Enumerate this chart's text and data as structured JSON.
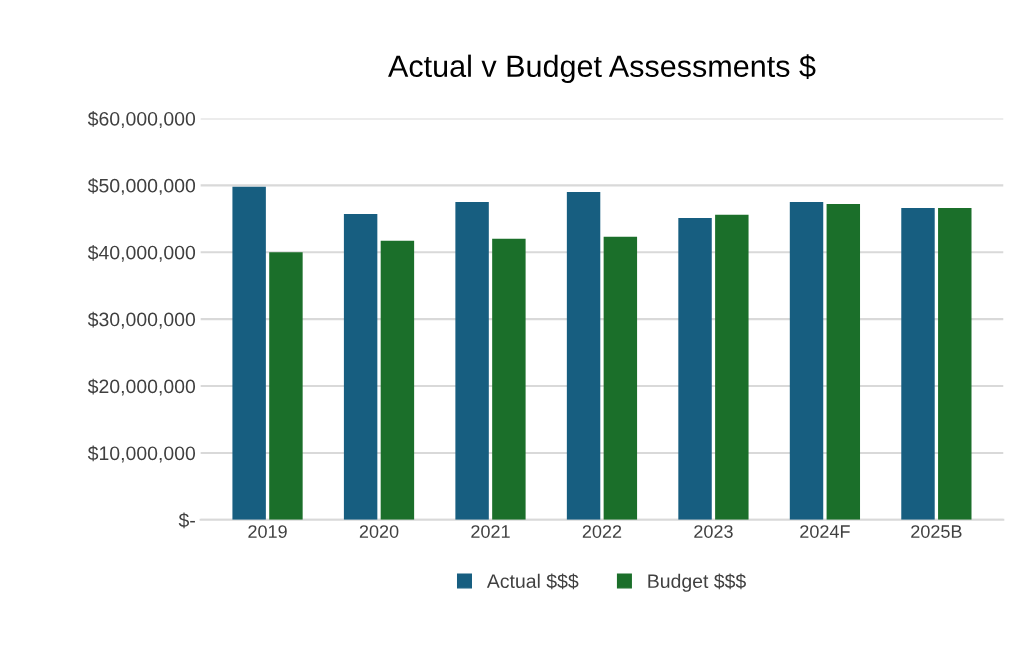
{
  "chart_data": {
    "type": "bar",
    "title": "Actual v Budget Assessments $",
    "categories": [
      "2019",
      "2020",
      "2021",
      "2022",
      "2023",
      "2024F",
      "2025B"
    ],
    "series": [
      {
        "name": "Actual $$$",
        "color": "#175e80",
        "values": [
          49800000.0,
          45700000.0,
          47500000.0,
          49000000.0,
          45100000.0,
          47500000.0,
          46600000.0
        ]
      },
      {
        "name": "Budget $$$",
        "color": "#1b6f2a",
        "values": [
          40000000.0,
          41700000.0,
          42000000.0,
          42300000.0,
          45600000.0,
          47200000.0,
          46600000.0
        ]
      }
    ],
    "ylim": [
      0,
      60000000
    ],
    "yticks": [
      {
        "value": 0,
        "label": "$-"
      },
      {
        "value": 10000000,
        "label": "$10,000,000"
      },
      {
        "value": 20000000,
        "label": "$20,000,000"
      },
      {
        "value": 30000000,
        "label": "$30,000,000"
      },
      {
        "value": 40000000,
        "label": "$40,000,000"
      },
      {
        "value": 50000000,
        "label": "$50,000,000"
      },
      {
        "value": 60000000,
        "label": "$60,000,000"
      }
    ],
    "grid": "y",
    "legend": "bottom"
  }
}
